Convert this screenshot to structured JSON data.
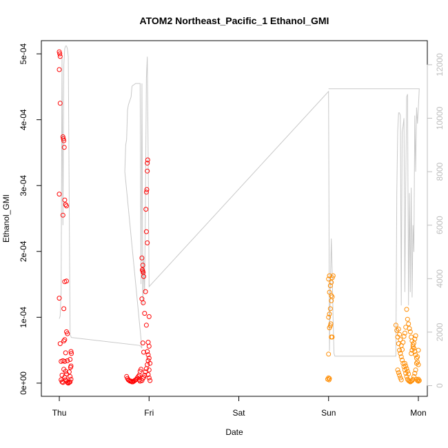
{
  "chart_data": {
    "type": "scatter",
    "title": "ATOM2 Northeast_Pacific_1 Ethanol_GMI",
    "xlabel": "Date",
    "ylabel": "Ethanol_GMI",
    "x_tick_labels": [
      "Thu",
      "Fri",
      "Sat",
      "Sun",
      "Mon"
    ],
    "y_tick_labels": [
      "0e+00",
      "1e-04",
      "2e-04",
      "3e-04",
      "4e-04",
      "5e-04"
    ],
    "y_tick_values": [
      0,
      0.0001,
      0.0002,
      0.0003,
      0.0004,
      0.0005
    ],
    "ylim": [
      -2e-05,
      0.00052
    ],
    "xlim": [
      -0.2,
      4.1
    ],
    "y2_tick_labels": [
      "0",
      "2000",
      "4000",
      "6000",
      "8000",
      "10000",
      "12000"
    ],
    "y2_tick_values": [
      0,
      2000,
      4000,
      6000,
      8000,
      10000,
      12000
    ],
    "y2lim": [
      -400,
      12900
    ],
    "grid": false,
    "colors": {
      "series_red": "#ff0000",
      "series_orange": "#ff8c00",
      "altitude_line": "#c8c8c8",
      "axis": "#000000",
      "y2_axis": "#bdbdbd"
    },
    "series": [
      {
        "color": "red",
        "marker": "open-circle",
        "points": [
          [
            0.0,
            0.000503
          ],
          [
            0.005,
            0.0005
          ],
          [
            0.01,
            0.000496
          ],
          [
            0.0,
            0.000476
          ],
          [
            0.01,
            0.000425
          ],
          [
            0.0,
            0.000287
          ],
          [
            0.0,
            0.000129
          ],
          [
            0.01,
            6e-05
          ],
          [
            0.02,
            3.3e-05
          ],
          [
            0.03,
            1.2e-05
          ],
          [
            0.02,
            5e-06
          ],
          [
            0.03,
            2e-06
          ],
          [
            0.04,
            1e-06
          ],
          [
            0.04,
            0.000374
          ],
          [
            0.045,
            0.000371
          ],
          [
            0.05,
            0.000368
          ],
          [
            0.055,
            0.000358
          ],
          [
            0.04,
            0.000255
          ],
          [
            0.06,
            0.000278
          ],
          [
            0.07,
            0.000271
          ],
          [
            0.08,
            0.000269
          ],
          [
            0.06,
            0.000154
          ],
          [
            0.08,
            0.000155
          ],
          [
            0.05,
            0.000113
          ],
          [
            0.08,
            7.8e-05
          ],
          [
            0.09,
            7.5e-05
          ],
          [
            0.06,
            6.6e-05
          ],
          [
            0.05,
            6.4e-05
          ],
          [
            0.07,
            4.6e-05
          ],
          [
            0.09,
            3.4e-05
          ],
          [
            0.06,
            3.3e-05
          ],
          [
            0.04,
            3.4e-05
          ],
          [
            0.05,
            2.1e-05
          ],
          [
            0.07,
            1.8e-05
          ],
          [
            0.08,
            1.4e-05
          ],
          [
            0.06,
            9e-06
          ],
          [
            0.07,
            5e-06
          ],
          [
            0.08,
            3e-06
          ],
          [
            0.09,
            1e-06
          ],
          [
            0.1,
            0.0
          ],
          [
            0.11,
            1e-06
          ],
          [
            0.12,
            2e-06
          ],
          [
            0.13,
            4.8e-05
          ],
          [
            0.135,
            4.5e-05
          ],
          [
            0.12,
            3.6e-05
          ],
          [
            0.13,
            2.6e-05
          ],
          [
            0.125,
            2.4e-05
          ],
          [
            0.13,
            6e-06
          ],
          [
            0.12,
            1e-05
          ],
          [
            0.11,
            1.7e-05
          ],
          [
            0.75,
            1e-05
          ],
          [
            0.76,
            7e-06
          ],
          [
            0.77,
            5e-06
          ],
          [
            0.78,
            4e-06
          ],
          [
            0.79,
            3e-06
          ],
          [
            0.8,
            3e-06
          ],
          [
            0.81,
            2e-06
          ],
          [
            0.82,
            2e-06
          ],
          [
            0.83,
            3e-06
          ],
          [
            0.84,
            4e-06
          ],
          [
            0.85,
            5e-06
          ],
          [
            0.86,
            6e-06
          ],
          [
            0.87,
            8e-06
          ],
          [
            0.88,
            1e-05
          ],
          [
            0.89,
            1.2e-05
          ],
          [
            0.9,
            1.8e-05
          ],
          [
            0.91,
            2.1e-05
          ],
          [
            0.89,
            5e-06
          ],
          [
            0.9,
            3e-06
          ],
          [
            0.92,
            4e-06
          ],
          [
            0.93,
            7e-06
          ],
          [
            0.94,
            9e-06
          ],
          [
            0.95,
            1.2e-05
          ],
          [
            0.96,
            1.7e-05
          ],
          [
            0.97,
            2.2e-05
          ],
          [
            0.98,
            2.8e-05
          ],
          [
            0.99,
            3.4e-05
          ],
          [
            1.0,
            3.8e-05
          ],
          [
            1.01,
            3e-05
          ],
          [
            1.0,
            2e-05
          ],
          [
            0.99,
            1.3e-05
          ],
          [
            1.0,
            8e-06
          ],
          [
            1.01,
            4e-06
          ],
          [
            0.92,
            0.00019
          ],
          [
            0.93,
            0.000179
          ],
          [
            0.925,
            0.000172
          ],
          [
            0.93,
            0.00017
          ],
          [
            0.935,
            0.000168
          ],
          [
            0.94,
            0.000162
          ],
          [
            0.935,
            0.000122
          ],
          [
            0.92,
            0.000128
          ],
          [
            0.93,
            6.1e-05
          ],
          [
            0.94,
            4.7e-05
          ],
          [
            0.95,
            0.000106
          ],
          [
            0.96,
            0.000139
          ],
          [
            0.97,
            0.00023
          ],
          [
            0.98,
            0.000213
          ],
          [
            0.965,
            0.000264
          ],
          [
            0.97,
            0.00029
          ],
          [
            0.975,
            0.000294
          ],
          [
            0.98,
            0.000322
          ],
          [
            0.98,
            0.000334
          ],
          [
            0.985,
            0.000339
          ],
          [
            0.97,
            8.8e-05
          ],
          [
            1.0,
            0.000101
          ],
          [
            0.99,
            6.2e-05
          ],
          [
            1.0,
            5.6e-05
          ],
          [
            0.98,
            4.8e-05
          ],
          [
            0.99,
            4.3e-05
          ]
        ]
      },
      {
        "color": "orange",
        "marker": "open-circle",
        "points": [
          [
            2.99,
            6e-06
          ],
          [
            3.0,
            8e-06
          ],
          [
            3.005,
            5e-06
          ],
          [
            3.01,
            7e-06
          ],
          [
            3.0,
            4.4e-05
          ],
          [
            3.01,
            8.4e-05
          ],
          [
            3.02,
            8.7e-05
          ],
          [
            3.025,
            9e-05
          ],
          [
            3.03,
            7e-05
          ],
          [
            3.04,
            7e-05
          ],
          [
            3.0,
            0.0001
          ],
          [
            3.01,
            0.000105
          ],
          [
            3.02,
            0.000113
          ],
          [
            3.03,
            0.000125
          ],
          [
            3.04,
            0.000131
          ],
          [
            3.01,
            0.000138
          ],
          [
            3.02,
            0.000148
          ],
          [
            3.03,
            0.000153
          ],
          [
            3.04,
            0.00016
          ],
          [
            3.05,
            0.000163
          ],
          [
            3.0,
            0.000158
          ],
          [
            3.01,
            0.000163
          ],
          [
            3.03,
            0.000133
          ],
          [
            3.75,
            8.8e-05
          ],
          [
            3.76,
            8e-05
          ],
          [
            3.77,
            7e-05
          ],
          [
            3.78,
            6e-05
          ],
          [
            3.79,
            5e-05
          ],
          [
            3.8,
            4.5e-05
          ],
          [
            3.81,
            4e-05
          ],
          [
            3.82,
            3.5e-05
          ],
          [
            3.83,
            3e-05
          ],
          [
            3.84,
            2.5e-05
          ],
          [
            3.85,
            2e-05
          ],
          [
            3.86,
            1.5e-05
          ],
          [
            3.87,
            1e-05
          ],
          [
            3.88,
            6e-06
          ],
          [
            3.89,
            4e-06
          ],
          [
            3.9,
            3e-06
          ],
          [
            3.91,
            2e-06
          ],
          [
            3.92,
            3e-06
          ],
          [
            3.93,
            4e-06
          ],
          [
            3.94,
            6e-06
          ],
          [
            3.95,
            1e-05
          ],
          [
            3.96,
            1.5e-05
          ],
          [
            3.97,
            2e-05
          ],
          [
            3.98,
            3e-05
          ],
          [
            3.99,
            4e-05
          ],
          [
            4.0,
            5e-05
          ],
          [
            3.78,
            8.2e-05
          ],
          [
            3.79,
            7.4e-05
          ],
          [
            3.8,
            6.6e-05
          ],
          [
            3.81,
            5.7e-05
          ],
          [
            3.82,
            5.1e-05
          ],
          [
            3.83,
            6.2e-05
          ],
          [
            3.84,
            7.1e-05
          ],
          [
            3.85,
            7.6e-05
          ],
          [
            3.86,
            8.5e-05
          ],
          [
            3.87,
            0.000112
          ],
          [
            3.88,
            9.7e-05
          ],
          [
            3.89,
            9e-05
          ],
          [
            3.9,
            8.3e-05
          ],
          [
            3.91,
            7.8e-05
          ],
          [
            3.92,
            7e-05
          ],
          [
            3.93,
            6.4e-05
          ],
          [
            3.94,
            5.8e-05
          ],
          [
            3.95,
            5.3e-05
          ],
          [
            3.96,
            4.8e-05
          ],
          [
            3.97,
            4.3e-05
          ],
          [
            3.98,
            3.8e-05
          ],
          [
            3.99,
            3.2e-05
          ],
          [
            4.0,
            2.8e-05
          ],
          [
            3.92,
            4.5e-05
          ],
          [
            3.93,
            5e-05
          ],
          [
            3.94,
            5.5e-05
          ],
          [
            3.95,
            6.1e-05
          ],
          [
            3.96,
            6.7e-05
          ],
          [
            3.97,
            7.2e-05
          ],
          [
            3.85,
            3e-05
          ],
          [
            3.86,
            2.6e-05
          ],
          [
            3.87,
            2.2e-05
          ],
          [
            3.88,
            1.8e-05
          ],
          [
            3.89,
            1.4e-05
          ],
          [
            3.77,
            2e-05
          ],
          [
            3.78,
            1.6e-05
          ],
          [
            3.79,
            1.2e-05
          ],
          [
            3.8,
            8e-06
          ],
          [
            3.81,
            5e-06
          ],
          [
            3.98,
            6e-06
          ],
          [
            3.99,
            4e-06
          ],
          [
            4.0,
            3e-06
          ],
          [
            4.01,
            4e-06
          ],
          [
            4.0,
            6e-06
          ]
        ]
      }
    ],
    "altitude_line": {
      "color": "gray",
      "axis": "right",
      "points": [
        [
          0.0,
          2500
        ],
        [
          0.01,
          2600
        ],
        [
          0.02,
          3500
        ],
        [
          0.03,
          12300
        ],
        [
          0.04,
          6000
        ],
        [
          0.05,
          12000
        ],
        [
          0.06,
          12600
        ],
        [
          0.07,
          12700
        ],
        [
          0.08,
          12700
        ],
        [
          0.09,
          12600
        ],
        [
          0.1,
          12300
        ],
        [
          0.11,
          7000
        ],
        [
          0.12,
          1900
        ],
        [
          0.135,
          1800
        ],
        [
          0.9,
          1500
        ],
        [
          0.92,
          1400
        ],
        [
          0.73,
          8000
        ],
        [
          0.74,
          9000
        ],
        [
          0.75,
          9200
        ],
        [
          0.76,
          10300
        ],
        [
          0.77,
          10500
        ],
        [
          0.78,
          10600
        ],
        [
          0.8,
          10800
        ],
        [
          0.81,
          11200
        ],
        [
          0.85,
          11300
        ],
        [
          0.88,
          11300
        ],
        [
          0.9,
          11300
        ],
        [
          0.91,
          3800
        ],
        [
          0.92,
          11300
        ],
        [
          0.93,
          3000
        ],
        [
          0.94,
          4800
        ],
        [
          0.95,
          3500
        ],
        [
          0.96,
          7000
        ],
        [
          0.97,
          11500
        ],
        [
          0.98,
          12300
        ],
        [
          0.99,
          8500
        ],
        [
          1.0,
          3700
        ],
        [
          3.0,
          11000
        ],
        [
          3.01,
          1300
        ],
        [
          3.02,
          3700
        ],
        [
          3.03,
          5500
        ],
        [
          3.04,
          4200
        ],
        [
          3.05,
          2500
        ],
        [
          3.06,
          1200
        ],
        [
          3.07,
          1100
        ],
        [
          3.75,
          1100
        ],
        [
          3.76,
          7200
        ],
        [
          3.77,
          9500
        ],
        [
          3.78,
          10200
        ],
        [
          3.79,
          10200
        ],
        [
          3.8,
          10100
        ],
        [
          3.81,
          3000
        ],
        [
          3.82,
          9500
        ],
        [
          3.83,
          9700
        ],
        [
          3.84,
          10000
        ],
        [
          3.85,
          3500
        ],
        [
          3.86,
          7500
        ],
        [
          3.87,
          10800
        ],
        [
          3.88,
          10900
        ],
        [
          3.89,
          3000
        ],
        [
          3.9,
          7200
        ],
        [
          3.91,
          3500
        ],
        [
          3.92,
          7400
        ],
        [
          3.93,
          3300
        ],
        [
          3.94,
          6000
        ],
        [
          3.95,
          5000
        ],
        [
          3.96,
          10100
        ],
        [
          3.97,
          8000
        ],
        [
          3.98,
          10400
        ],
        [
          3.99,
          9800
        ],
        [
          4.0,
          10400
        ],
        [
          4.01,
          11100
        ],
        [
          3.0,
          11100
        ]
      ]
    }
  }
}
